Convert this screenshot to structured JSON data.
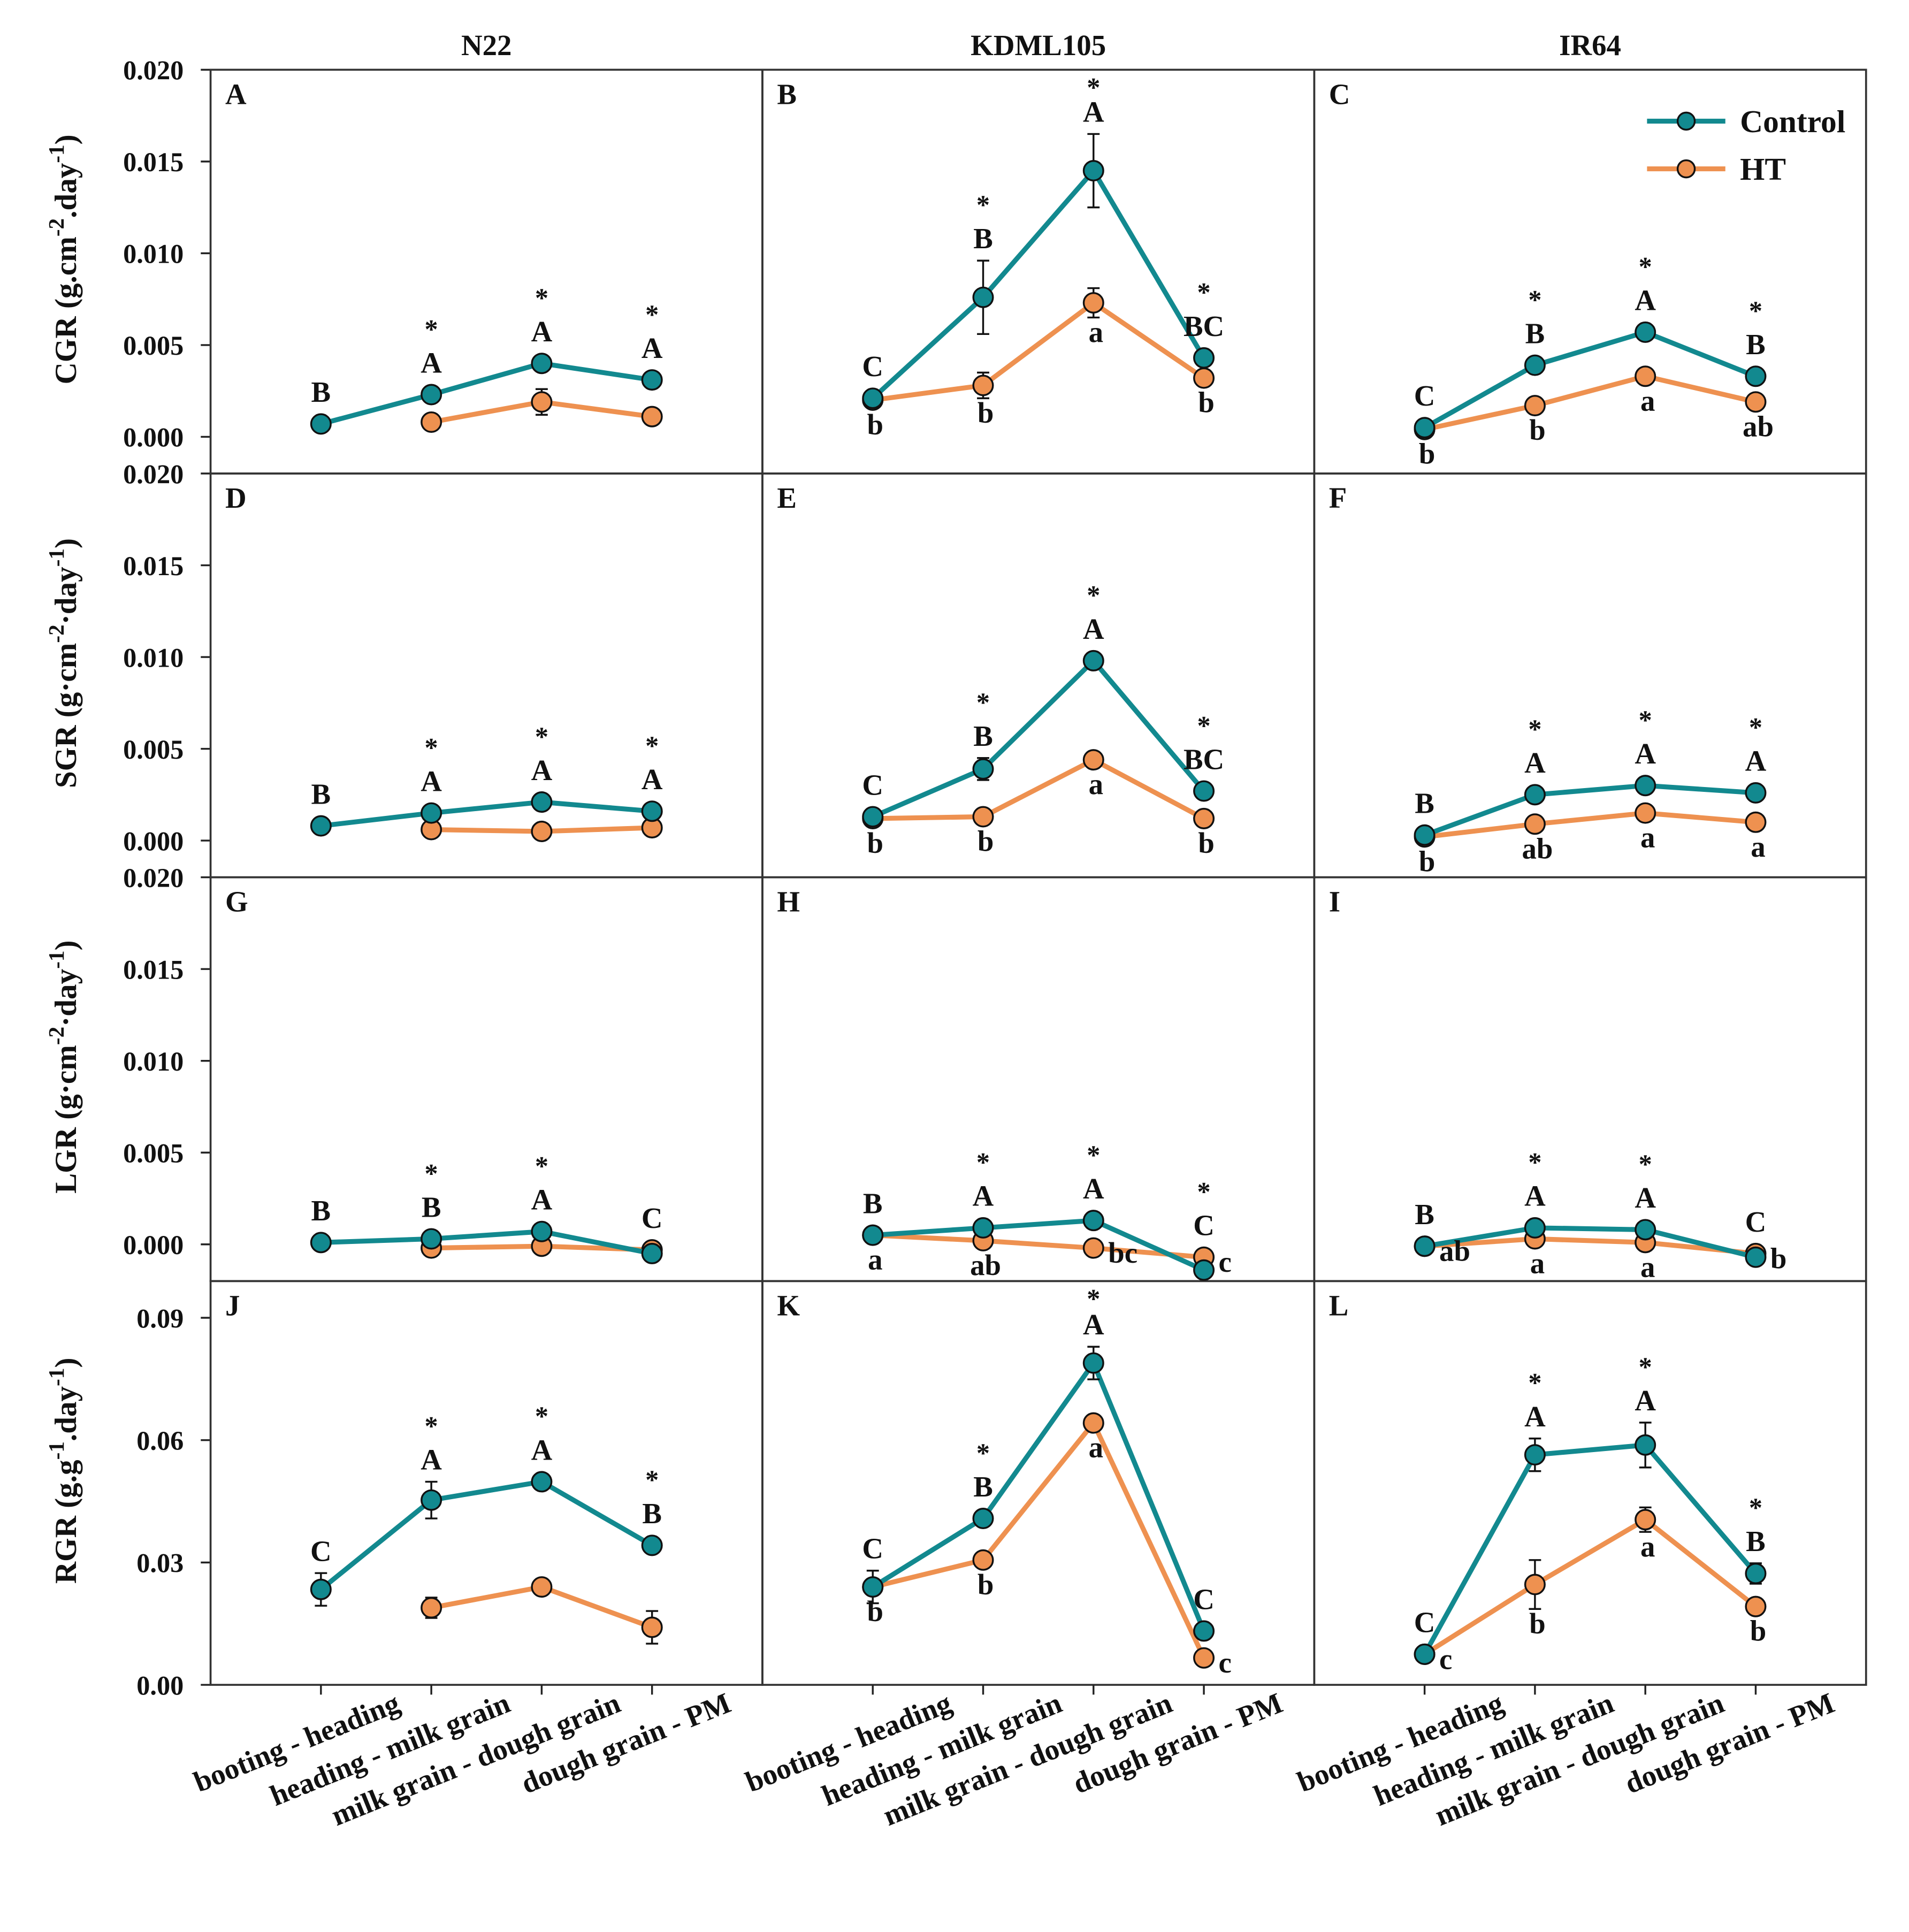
{
  "legend": {
    "position": "top-right",
    "entries": [
      {
        "label": "Control",
        "color": "#12898F"
      },
      {
        "label": "HT",
        "color": "#EE9150"
      }
    ]
  },
  "columns": [
    "N22",
    "KDML105",
    "IR64"
  ],
  "rows": [
    {
      "metric": "CGR",
      "ylabel": {
        "pre": "CGR (g.cm",
        "sup1": "-2",
        "mid": ".day",
        "sup2": "-1",
        "post": ")"
      },
      "ylim": [
        -0.002,
        0.02
      ],
      "ticks": [
        "0.000",
        "0.005",
        "0.010",
        "0.015",
        "0.020"
      ]
    },
    {
      "metric": "SGR",
      "ylabel": {
        "pre": "SGR (g·cm",
        "sup1": "-2",
        "mid": "·day",
        "sup2": "-1",
        "post": ")"
      },
      "ylim": [
        -0.002,
        0.02
      ],
      "ticks": [
        "0.000",
        "0.005",
        "0.010",
        "0.015",
        "0.020"
      ]
    },
    {
      "metric": "LGR",
      "ylabel": {
        "pre": "LGR (g·cm",
        "sup1": "-2",
        "mid": "·day",
        "sup2": "-1",
        "post": ")"
      },
      "ylim": [
        -0.002,
        0.02
      ],
      "ticks": [
        "0.000",
        "0.005",
        "0.010",
        "0.015",
        "0.020"
      ]
    },
    {
      "metric": "RGR",
      "ylabel": {
        "pre": "RGR (g.g",
        "sup1": "-1",
        "mid": ".day",
        "sup2": "-1",
        "post": ")"
      },
      "ylim": [
        0,
        0.099
      ],
      "ticks": [
        "0.00",
        "0.03",
        "0.06",
        "0.09"
      ]
    }
  ],
  "categories": [
    "booting - heading",
    "heading - milk grain",
    "milk grain - dough grain",
    "dough grain - PM"
  ],
  "chart_data": [
    {
      "type": "line",
      "panel": "A",
      "row": 0,
      "col": 0,
      "control": [
        0.0007,
        0.0023,
        0.004,
        0.0031
      ],
      "control_err": [
        0.0001,
        0.0002,
        0.0005,
        0.0004
      ],
      "ht": [
        null,
        0.0008,
        0.0019,
        0.0011
      ],
      "ht_err": [
        null,
        0.0001,
        0.0007,
        0.0002
      ],
      "upper": [
        "B",
        "A",
        "A",
        "A"
      ],
      "lower": [
        "",
        "",
        "",
        ""
      ],
      "star": [
        false,
        true,
        true,
        true
      ]
    },
    {
      "type": "line",
      "panel": "B",
      "row": 0,
      "col": 1,
      "control": [
        0.0021,
        0.0076,
        0.0145,
        0.0043
      ],
      "control_err": [
        0.0005,
        0.002,
        0.002,
        0.0004
      ],
      "ht": [
        0.002,
        0.0028,
        0.0073,
        0.0032
      ],
      "ht_err": [
        0.0002,
        0.0007,
        0.0008,
        0.0003
      ],
      "upper": [
        "C",
        "B",
        "A",
        "BC"
      ],
      "lower": [
        "b",
        "b",
        "a",
        "b"
      ],
      "star": [
        false,
        true,
        true,
        true
      ]
    },
    {
      "type": "line",
      "panel": "C",
      "row": 0,
      "col": 2,
      "control": [
        0.0005,
        0.0039,
        0.0057,
        0.0033
      ],
      "control_err": [
        0.0001,
        0.0002,
        0.0004,
        0.0002
      ],
      "ht": [
        0.0004,
        0.0017,
        0.0033,
        0.0019
      ],
      "ht_err": [
        0.0001,
        0.0004,
        0.0002,
        0.0002
      ],
      "upper": [
        "C",
        "B",
        "A",
        "B"
      ],
      "lower": [
        "b",
        "b",
        "a",
        "ab"
      ],
      "star": [
        false,
        true,
        true,
        true
      ]
    },
    {
      "type": "line",
      "panel": "D",
      "row": 1,
      "col": 0,
      "control": [
        0.0008,
        0.0015,
        0.0021,
        0.0016
      ],
      "control_err": [
        0.0001,
        0.0001,
        0.0001,
        0.0001
      ],
      "ht": [
        null,
        0.0006,
        0.0005,
        0.0007
      ],
      "ht_err": [
        null,
        0.0001,
        0.0001,
        0.0001
      ],
      "upper": [
        "B",
        "A",
        "A",
        "A"
      ],
      "lower": [
        "",
        "",
        "",
        ""
      ],
      "star": [
        false,
        true,
        true,
        true
      ]
    },
    {
      "type": "line",
      "panel": "E",
      "row": 1,
      "col": 1,
      "control": [
        0.0013,
        0.0039,
        0.0098,
        0.0027
      ],
      "control_err": [
        0.0002,
        0.0006,
        0.0004,
        0.0002
      ],
      "ht": [
        0.0012,
        0.0013,
        0.0044,
        0.0012
      ],
      "ht_err": [
        0.0001,
        0.0001,
        0.0005,
        0.0002
      ],
      "upper": [
        "C",
        "B",
        "A",
        "BC"
      ],
      "lower": [
        "b",
        "b",
        "a",
        "b"
      ],
      "star": [
        false,
        true,
        true,
        true
      ]
    },
    {
      "type": "line",
      "panel": "F",
      "row": 1,
      "col": 2,
      "control": [
        0.0003,
        0.0025,
        0.003,
        0.0026
      ],
      "control_err": [
        0.0001,
        0.0002,
        0.0004,
        0.0002
      ],
      "ht": [
        0.0002,
        0.0009,
        0.0015,
        0.001
      ],
      "ht_err": [
        0.0001,
        0.0002,
        0.0002,
        0.0002
      ],
      "upper": [
        "B",
        "A",
        "A",
        "A"
      ],
      "lower": [
        "b",
        "ab",
        "a",
        "a"
      ],
      "star": [
        false,
        true,
        true,
        true
      ]
    },
    {
      "type": "line",
      "panel": "G",
      "row": 2,
      "col": 0,
      "control": [
        0.0001,
        0.0003,
        0.0007,
        -0.0005
      ],
      "control_err": [
        0.0001,
        0.0001,
        0.0001,
        0.0001
      ],
      "ht": [
        null,
        -0.0002,
        -0.0001,
        -0.0003
      ],
      "ht_err": [
        null,
        0.0001,
        0.0001,
        0.0001
      ],
      "upper": [
        "B",
        "B",
        "A",
        "C"
      ],
      "lower": [
        "",
        "",
        "",
        ""
      ],
      "star": [
        false,
        true,
        true,
        false
      ]
    },
    {
      "type": "line",
      "panel": "H",
      "row": 2,
      "col": 1,
      "control": [
        0.0005,
        0.0009,
        0.0013,
        -0.0014
      ],
      "control_err": [
        0.0001,
        0.0001,
        0.0001,
        0.0001
      ],
      "ht": [
        0.0005,
        0.0002,
        -0.0002,
        -0.0007
      ],
      "ht_err": [
        0.0001,
        0.0001,
        0.0001,
        0.0001
      ],
      "upper": [
        "B",
        "A",
        "A",
        "C"
      ],
      "lower": [
        "a",
        "ab",
        "bc",
        "c"
      ],
      "star": [
        false,
        true,
        true,
        true
      ]
    },
    {
      "type": "line",
      "panel": "I",
      "row": 2,
      "col": 2,
      "control": [
        -0.0001,
        0.0009,
        0.0008,
        -0.0007
      ],
      "control_err": [
        0.0001,
        0.0001,
        0.0001,
        0.0001
      ],
      "ht": [
        -0.0001,
        0.0003,
        0.0001,
        -0.0005
      ],
      "ht_err": [
        0.0001,
        0.0001,
        0.0001,
        0.0001
      ],
      "upper": [
        "B",
        "A",
        "A",
        "C"
      ],
      "lower": [
        "ab",
        "a",
        "a",
        "b"
      ],
      "star": [
        false,
        true,
        true,
        false
      ]
    },
    {
      "type": "line",
      "panel": "J",
      "row": 3,
      "col": 0,
      "control": [
        0.0234,
        0.0453,
        0.0498,
        0.0342
      ],
      "control_err": [
        0.004,
        0.0045,
        0.001,
        0.001
      ],
      "ht": [
        null,
        0.0189,
        0.024,
        0.0141
      ],
      "ht_err": [
        null,
        0.0025,
        0.002,
        0.004
      ],
      "upper": [
        "C",
        "A",
        "A",
        "B"
      ],
      "lower": [
        "",
        "",
        "",
        ""
      ],
      "star": [
        false,
        true,
        true,
        true
      ]
    },
    {
      "type": "line",
      "panel": "K",
      "row": 3,
      "col": 1,
      "control": [
        0.024,
        0.0408,
        0.0789,
        0.0132
      ],
      "control_err": [
        0.004,
        0.002,
        0.004,
        0.002
      ],
      "ht": [
        0.024,
        0.0306,
        0.0642,
        0.0066
      ],
      "ht_err": [
        0.001,
        0.001,
        0.001,
        0.001
      ],
      "upper": [
        "C",
        "B",
        "A",
        "C"
      ],
      "lower": [
        "b",
        "b",
        "a",
        "c"
      ],
      "star": [
        false,
        true,
        true,
        false
      ]
    },
    {
      "type": "line",
      "panel": "L",
      "row": 3,
      "col": 2,
      "control": [
        0.0075,
        0.0564,
        0.0588,
        0.0273
      ],
      "control_err": [
        0.001,
        0.004,
        0.0055,
        0.0025
      ],
      "ht": [
        0.0075,
        0.0246,
        0.0405,
        0.0192
      ],
      "ht_err": [
        0.001,
        0.006,
        0.003,
        0.002
      ],
      "upper": [
        "C",
        "A",
        "A",
        "B"
      ],
      "lower": [
        "c",
        "b",
        "a",
        "b"
      ],
      "star": [
        false,
        true,
        true,
        true
      ]
    }
  ]
}
